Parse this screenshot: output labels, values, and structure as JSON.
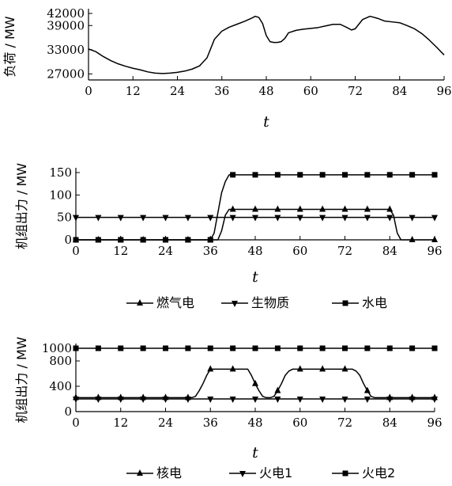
{
  "chart_data": [
    {
      "type": "line",
      "ylabel": "负荷 / MW",
      "xlabel": "t",
      "xlim": [
        0,
        96
      ],
      "ylim": [
        25500,
        42000
      ],
      "xticks": [
        "0",
        "12",
        "24",
        "36",
        "48",
        "60",
        "72",
        "84",
        "96"
      ],
      "yticks": [
        {
          "value": 27000,
          "label": "27000"
        },
        {
          "value": 33000,
          "label": "33000"
        },
        {
          "value": 39000,
          "label": "39000"
        },
        {
          "value": 42000,
          "label": "42000"
        }
      ],
      "series": [
        {
          "marker": "none",
          "x": [
            0,
            2,
            4,
            6,
            8,
            10,
            12,
            14,
            16,
            18,
            20,
            22,
            24,
            26,
            28,
            30,
            32,
            34,
            36,
            38,
            40,
            42,
            44,
            45,
            46,
            47,
            48,
            49,
            50,
            51,
            52,
            53,
            54,
            56,
            58,
            60,
            62,
            64,
            66,
            68,
            70,
            71,
            72,
            74,
            76,
            78,
            80,
            82,
            84,
            86,
            88,
            90,
            92,
            94,
            96
          ],
          "values": [
            33200,
            32500,
            31300,
            30300,
            29500,
            28900,
            28400,
            28000,
            27500,
            27200,
            27100,
            27200,
            27400,
            27700,
            28200,
            29000,
            31000,
            35600,
            37600,
            38600,
            39300,
            40000,
            40800,
            41300,
            41000,
            39500,
            36500,
            35000,
            34800,
            34800,
            35000,
            35800,
            37200,
            37800,
            38100,
            38300,
            38500,
            38900,
            39300,
            39300,
            38400,
            37900,
            38200,
            40500,
            41300,
            40800,
            40100,
            39900,
            39700,
            39000,
            38200,
            37000,
            35400,
            33600,
            31700
          ]
        }
      ]
    },
    {
      "type": "line",
      "ylabel": "机组出力 / MW",
      "xlabel": "t",
      "xlim": [
        0,
        96
      ],
      "ylim": [
        0,
        150
      ],
      "xticks": [
        "0",
        "12",
        "24",
        "36",
        "48",
        "60",
        "72",
        "84",
        "96"
      ],
      "yticks": [
        {
          "value": 0,
          "label": "0"
        },
        {
          "value": 50,
          "label": "50"
        },
        {
          "value": 100,
          "label": "100"
        },
        {
          "value": 150,
          "label": "150"
        }
      ],
      "legend": {
        "placement": "bottom"
      },
      "series": [
        {
          "name": "燃气电",
          "marker": "triangle-up",
          "x": [
            0,
            38,
            39,
            40,
            41,
            84,
            85,
            86,
            87,
            96
          ],
          "values": [
            0,
            0,
            20,
            55,
            68,
            68,
            55,
            15,
            0,
            0
          ]
        },
        {
          "name": "生物质",
          "marker": "triangle-down",
          "x": [
            0,
            96
          ],
          "values": [
            50,
            50
          ]
        },
        {
          "name": "水电",
          "marker": "square",
          "x": [
            0,
            36,
            37,
            38,
            39,
            40,
            41,
            96
          ],
          "values": [
            0,
            0,
            15,
            60,
            105,
            130,
            145,
            145
          ]
        }
      ]
    },
    {
      "type": "line",
      "ylabel": "机组出力 / MW",
      "xlabel": "t",
      "xlim": [
        0,
        96
      ],
      "ylim": [
        0,
        1000
      ],
      "xticks": [
        "0",
        "12",
        "24",
        "36",
        "48",
        "60",
        "72",
        "84",
        "96"
      ],
      "yticks": [
        {
          "value": 0,
          "label": "0"
        },
        {
          "value": 400,
          "label": "400"
        },
        {
          "value": 800,
          "label": "800"
        },
        {
          "value": 1000,
          "label": "1000"
        }
      ],
      "legend": {
        "placement": "bottom"
      },
      "series": [
        {
          "name": "核电",
          "marker": "triangle-up",
          "x": [
            0,
            31,
            32,
            33,
            34,
            35,
            36,
            46,
            47,
            48,
            49,
            50,
            51,
            52,
            53,
            54,
            55,
            56,
            57,
            58,
            59,
            60,
            74,
            75,
            76,
            77,
            78,
            79,
            80,
            81,
            96
          ],
          "values": [
            220,
            220,
            240,
            330,
            440,
            570,
            670,
            670,
            570,
            440,
            330,
            240,
            220,
            220,
            240,
            330,
            440,
            570,
            640,
            670,
            670,
            670,
            670,
            640,
            570,
            440,
            330,
            240,
            220,
            220,
            220
          ]
        },
        {
          "name": "火电1",
          "marker": "triangle-down",
          "x": [
            0,
            96
          ],
          "values": [
            200,
            200
          ]
        },
        {
          "name": "火电2",
          "marker": "square",
          "x": [
            0,
            96
          ],
          "values": [
            1000,
            1000
          ]
        }
      ]
    }
  ]
}
